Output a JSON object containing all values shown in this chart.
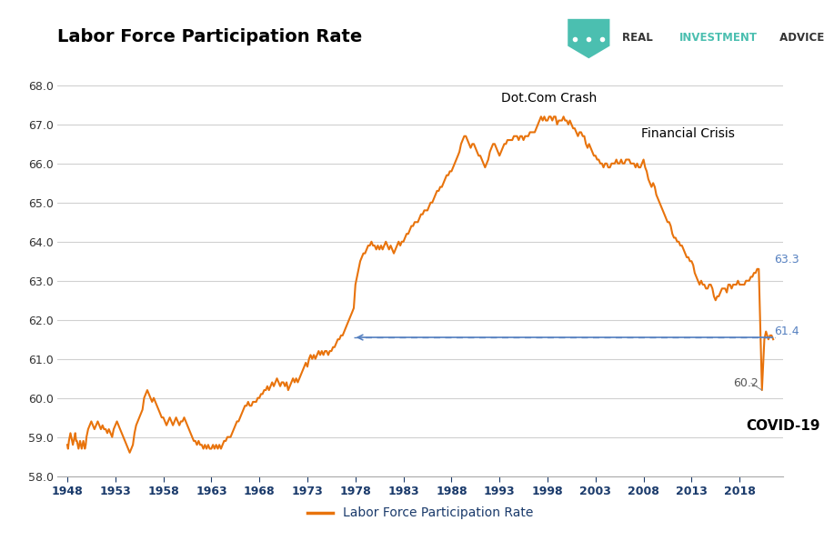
{
  "title": "Labor Force Participation Rate",
  "legend_label": "Labor Force Participation Rate",
  "line_color": "#E8730C",
  "background_color": "#ffffff",
  "grid_color": "#d0d0d0",
  "ylim": [
    58.0,
    68.8
  ],
  "yticks": [
    58.0,
    59.0,
    60.0,
    61.0,
    62.0,
    63.0,
    64.0,
    65.0,
    66.0,
    67.0,
    68.0
  ],
  "xticks": [
    1948,
    1953,
    1958,
    1963,
    1968,
    1973,
    1978,
    1983,
    1988,
    1993,
    1998,
    2003,
    2008,
    2013,
    2018
  ],
  "xlim": [
    1947,
    2022.5
  ],
  "dashed_line_y": 61.55,
  "dashed_line_x_start": 1977.8,
  "dashed_line_x_end": 2021.7,
  "series": [
    [
      1948.0,
      58.8
    ],
    [
      1948.08,
      58.7
    ],
    [
      1948.17,
      58.9
    ],
    [
      1948.25,
      59.0
    ],
    [
      1948.33,
      59.1
    ],
    [
      1948.42,
      59.0
    ],
    [
      1948.5,
      58.9
    ],
    [
      1948.58,
      58.8
    ],
    [
      1948.67,
      58.9
    ],
    [
      1948.75,
      59.0
    ],
    [
      1948.83,
      59.1
    ],
    [
      1948.92,
      58.9
    ],
    [
      1949.0,
      58.9
    ],
    [
      1949.08,
      58.8
    ],
    [
      1949.17,
      58.7
    ],
    [
      1949.25,
      58.8
    ],
    [
      1949.33,
      58.9
    ],
    [
      1949.42,
      58.8
    ],
    [
      1949.5,
      58.7
    ],
    [
      1949.58,
      58.8
    ],
    [
      1949.67,
      58.9
    ],
    [
      1949.75,
      58.8
    ],
    [
      1949.83,
      58.7
    ],
    [
      1949.92,
      58.8
    ],
    [
      1950.0,
      59.0
    ],
    [
      1950.17,
      59.2
    ],
    [
      1950.33,
      59.3
    ],
    [
      1950.5,
      59.4
    ],
    [
      1950.67,
      59.3
    ],
    [
      1950.83,
      59.2
    ],
    [
      1951.0,
      59.3
    ],
    [
      1951.17,
      59.4
    ],
    [
      1951.33,
      59.3
    ],
    [
      1951.5,
      59.2
    ],
    [
      1951.67,
      59.3
    ],
    [
      1951.83,
      59.2
    ],
    [
      1952.0,
      59.2
    ],
    [
      1952.17,
      59.1
    ],
    [
      1952.33,
      59.2
    ],
    [
      1952.5,
      59.1
    ],
    [
      1952.67,
      59.0
    ],
    [
      1952.83,
      59.2
    ],
    [
      1953.0,
      59.3
    ],
    [
      1953.17,
      59.4
    ],
    [
      1953.33,
      59.3
    ],
    [
      1953.5,
      59.2
    ],
    [
      1953.67,
      59.1
    ],
    [
      1953.83,
      59.0
    ],
    [
      1954.0,
      58.9
    ],
    [
      1954.17,
      58.8
    ],
    [
      1954.33,
      58.7
    ],
    [
      1954.5,
      58.6
    ],
    [
      1954.67,
      58.7
    ],
    [
      1954.83,
      58.8
    ],
    [
      1955.0,
      59.1
    ],
    [
      1955.17,
      59.3
    ],
    [
      1955.33,
      59.4
    ],
    [
      1955.5,
      59.5
    ],
    [
      1955.67,
      59.6
    ],
    [
      1955.83,
      59.7
    ],
    [
      1956.0,
      60.0
    ],
    [
      1956.17,
      60.1
    ],
    [
      1956.33,
      60.2
    ],
    [
      1956.5,
      60.1
    ],
    [
      1956.67,
      60.0
    ],
    [
      1956.83,
      59.9
    ],
    [
      1957.0,
      60.0
    ],
    [
      1957.17,
      59.9
    ],
    [
      1957.33,
      59.8
    ],
    [
      1957.5,
      59.7
    ],
    [
      1957.67,
      59.6
    ],
    [
      1957.83,
      59.5
    ],
    [
      1958.0,
      59.5
    ],
    [
      1958.17,
      59.4
    ],
    [
      1958.33,
      59.3
    ],
    [
      1958.5,
      59.4
    ],
    [
      1958.67,
      59.5
    ],
    [
      1958.83,
      59.4
    ],
    [
      1959.0,
      59.3
    ],
    [
      1959.17,
      59.4
    ],
    [
      1959.33,
      59.5
    ],
    [
      1959.5,
      59.4
    ],
    [
      1959.67,
      59.3
    ],
    [
      1959.83,
      59.4
    ],
    [
      1960.0,
      59.4
    ],
    [
      1960.17,
      59.5
    ],
    [
      1960.33,
      59.4
    ],
    [
      1960.5,
      59.3
    ],
    [
      1960.67,
      59.2
    ],
    [
      1960.83,
      59.1
    ],
    [
      1961.0,
      59.0
    ],
    [
      1961.17,
      58.9
    ],
    [
      1961.33,
      58.9
    ],
    [
      1961.5,
      58.8
    ],
    [
      1961.67,
      58.9
    ],
    [
      1961.83,
      58.8
    ],
    [
      1962.0,
      58.8
    ],
    [
      1962.17,
      58.7
    ],
    [
      1962.33,
      58.8
    ],
    [
      1962.5,
      58.7
    ],
    [
      1962.67,
      58.8
    ],
    [
      1962.83,
      58.7
    ],
    [
      1963.0,
      58.7
    ],
    [
      1963.17,
      58.8
    ],
    [
      1963.33,
      58.7
    ],
    [
      1963.5,
      58.8
    ],
    [
      1963.67,
      58.7
    ],
    [
      1963.83,
      58.8
    ],
    [
      1964.0,
      58.7
    ],
    [
      1964.17,
      58.8
    ],
    [
      1964.33,
      58.9
    ],
    [
      1964.5,
      58.9
    ],
    [
      1964.67,
      59.0
    ],
    [
      1964.83,
      59.0
    ],
    [
      1965.0,
      59.0
    ],
    [
      1965.17,
      59.1
    ],
    [
      1965.33,
      59.2
    ],
    [
      1965.5,
      59.3
    ],
    [
      1965.67,
      59.4
    ],
    [
      1965.83,
      59.4
    ],
    [
      1966.0,
      59.5
    ],
    [
      1966.17,
      59.6
    ],
    [
      1966.33,
      59.7
    ],
    [
      1966.5,
      59.8
    ],
    [
      1966.67,
      59.8
    ],
    [
      1966.83,
      59.9
    ],
    [
      1967.0,
      59.8
    ],
    [
      1967.17,
      59.8
    ],
    [
      1967.33,
      59.9
    ],
    [
      1967.5,
      59.9
    ],
    [
      1967.67,
      59.9
    ],
    [
      1967.83,
      60.0
    ],
    [
      1968.0,
      60.0
    ],
    [
      1968.17,
      60.1
    ],
    [
      1968.33,
      60.1
    ],
    [
      1968.5,
      60.2
    ],
    [
      1968.67,
      60.2
    ],
    [
      1968.83,
      60.3
    ],
    [
      1969.0,
      60.2
    ],
    [
      1969.17,
      60.3
    ],
    [
      1969.33,
      60.4
    ],
    [
      1969.5,
      60.3
    ],
    [
      1969.67,
      60.4
    ],
    [
      1969.83,
      60.5
    ],
    [
      1970.0,
      60.4
    ],
    [
      1970.17,
      60.3
    ],
    [
      1970.33,
      60.4
    ],
    [
      1970.5,
      60.4
    ],
    [
      1970.67,
      60.3
    ],
    [
      1970.83,
      60.4
    ],
    [
      1971.0,
      60.2
    ],
    [
      1971.17,
      60.3
    ],
    [
      1971.33,
      60.4
    ],
    [
      1971.5,
      60.5
    ],
    [
      1971.67,
      60.4
    ],
    [
      1971.83,
      60.5
    ],
    [
      1972.0,
      60.4
    ],
    [
      1972.17,
      60.5
    ],
    [
      1972.33,
      60.6
    ],
    [
      1972.5,
      60.7
    ],
    [
      1972.67,
      60.8
    ],
    [
      1972.83,
      60.9
    ],
    [
      1973.0,
      60.8
    ],
    [
      1973.17,
      61.0
    ],
    [
      1973.33,
      61.1
    ],
    [
      1973.5,
      61.0
    ],
    [
      1973.67,
      61.1
    ],
    [
      1973.83,
      61.0
    ],
    [
      1974.0,
      61.1
    ],
    [
      1974.17,
      61.2
    ],
    [
      1974.33,
      61.1
    ],
    [
      1974.5,
      61.2
    ],
    [
      1974.67,
      61.1
    ],
    [
      1974.83,
      61.2
    ],
    [
      1975.0,
      61.2
    ],
    [
      1975.17,
      61.1
    ],
    [
      1975.33,
      61.2
    ],
    [
      1975.5,
      61.2
    ],
    [
      1975.67,
      61.3
    ],
    [
      1975.83,
      61.3
    ],
    [
      1976.0,
      61.4
    ],
    [
      1976.17,
      61.5
    ],
    [
      1976.33,
      61.5
    ],
    [
      1976.5,
      61.6
    ],
    [
      1976.67,
      61.6
    ],
    [
      1976.83,
      61.7
    ],
    [
      1977.0,
      61.8
    ],
    [
      1977.17,
      61.9
    ],
    [
      1977.33,
      62.0
    ],
    [
      1977.5,
      62.1
    ],
    [
      1977.67,
      62.2
    ],
    [
      1977.83,
      62.3
    ],
    [
      1978.0,
      62.9
    ],
    [
      1978.17,
      63.1
    ],
    [
      1978.33,
      63.3
    ],
    [
      1978.5,
      63.5
    ],
    [
      1978.67,
      63.6
    ],
    [
      1978.83,
      63.7
    ],
    [
      1979.0,
      63.7
    ],
    [
      1979.17,
      63.8
    ],
    [
      1979.33,
      63.9
    ],
    [
      1979.5,
      63.9
    ],
    [
      1979.67,
      64.0
    ],
    [
      1979.83,
      63.9
    ],
    [
      1980.0,
      63.9
    ],
    [
      1980.17,
      63.8
    ],
    [
      1980.33,
      63.9
    ],
    [
      1980.5,
      63.8
    ],
    [
      1980.67,
      63.9
    ],
    [
      1980.83,
      63.8
    ],
    [
      1981.0,
      63.9
    ],
    [
      1981.17,
      64.0
    ],
    [
      1981.33,
      63.9
    ],
    [
      1981.5,
      63.8
    ],
    [
      1981.67,
      63.9
    ],
    [
      1981.83,
      63.8
    ],
    [
      1982.0,
      63.7
    ],
    [
      1982.17,
      63.8
    ],
    [
      1982.33,
      63.9
    ],
    [
      1982.5,
      64.0
    ],
    [
      1982.67,
      63.9
    ],
    [
      1982.83,
      64.0
    ],
    [
      1983.0,
      64.0
    ],
    [
      1983.17,
      64.1
    ],
    [
      1983.33,
      64.2
    ],
    [
      1983.5,
      64.2
    ],
    [
      1983.67,
      64.3
    ],
    [
      1983.83,
      64.4
    ],
    [
      1984.0,
      64.4
    ],
    [
      1984.17,
      64.5
    ],
    [
      1984.33,
      64.5
    ],
    [
      1984.5,
      64.5
    ],
    [
      1984.67,
      64.6
    ],
    [
      1984.83,
      64.7
    ],
    [
      1985.0,
      64.7
    ],
    [
      1985.17,
      64.8
    ],
    [
      1985.33,
      64.8
    ],
    [
      1985.5,
      64.8
    ],
    [
      1985.67,
      64.9
    ],
    [
      1985.83,
      65.0
    ],
    [
      1986.0,
      65.0
    ],
    [
      1986.17,
      65.1
    ],
    [
      1986.33,
      65.2
    ],
    [
      1986.5,
      65.3
    ],
    [
      1986.67,
      65.3
    ],
    [
      1986.83,
      65.4
    ],
    [
      1987.0,
      65.4
    ],
    [
      1987.17,
      65.5
    ],
    [
      1987.33,
      65.6
    ],
    [
      1987.5,
      65.7
    ],
    [
      1987.67,
      65.7
    ],
    [
      1987.83,
      65.8
    ],
    [
      1988.0,
      65.8
    ],
    [
      1988.17,
      65.9
    ],
    [
      1988.33,
      66.0
    ],
    [
      1988.5,
      66.1
    ],
    [
      1988.67,
      66.2
    ],
    [
      1988.83,
      66.3
    ],
    [
      1989.0,
      66.5
    ],
    [
      1989.17,
      66.6
    ],
    [
      1989.33,
      66.7
    ],
    [
      1989.5,
      66.7
    ],
    [
      1989.67,
      66.6
    ],
    [
      1989.83,
      66.5
    ],
    [
      1990.0,
      66.4
    ],
    [
      1990.17,
      66.5
    ],
    [
      1990.33,
      66.5
    ],
    [
      1990.5,
      66.4
    ],
    [
      1990.67,
      66.3
    ],
    [
      1990.83,
      66.2
    ],
    [
      1991.0,
      66.2
    ],
    [
      1991.17,
      66.1
    ],
    [
      1991.33,
      66.0
    ],
    [
      1991.5,
      65.9
    ],
    [
      1991.67,
      66.0
    ],
    [
      1991.83,
      66.1
    ],
    [
      1992.0,
      66.3
    ],
    [
      1992.17,
      66.4
    ],
    [
      1992.33,
      66.5
    ],
    [
      1992.5,
      66.5
    ],
    [
      1992.67,
      66.4
    ],
    [
      1992.83,
      66.3
    ],
    [
      1993.0,
      66.2
    ],
    [
      1993.17,
      66.3
    ],
    [
      1993.33,
      66.4
    ],
    [
      1993.5,
      66.5
    ],
    [
      1993.67,
      66.5
    ],
    [
      1993.83,
      66.6
    ],
    [
      1994.0,
      66.6
    ],
    [
      1994.17,
      66.6
    ],
    [
      1994.33,
      66.6
    ],
    [
      1994.5,
      66.7
    ],
    [
      1994.67,
      66.7
    ],
    [
      1994.83,
      66.7
    ],
    [
      1995.0,
      66.6
    ],
    [
      1995.17,
      66.7
    ],
    [
      1995.33,
      66.7
    ],
    [
      1995.5,
      66.6
    ],
    [
      1995.67,
      66.7
    ],
    [
      1995.83,
      66.7
    ],
    [
      1996.0,
      66.7
    ],
    [
      1996.17,
      66.8
    ],
    [
      1996.33,
      66.8
    ],
    [
      1996.5,
      66.8
    ],
    [
      1996.67,
      66.8
    ],
    [
      1996.83,
      66.9
    ],
    [
      1997.0,
      67.0
    ],
    [
      1997.17,
      67.1
    ],
    [
      1997.33,
      67.2
    ],
    [
      1997.5,
      67.1
    ],
    [
      1997.67,
      67.2
    ],
    [
      1997.83,
      67.1
    ],
    [
      1998.0,
      67.1
    ],
    [
      1998.17,
      67.2
    ],
    [
      1998.33,
      67.2
    ],
    [
      1998.5,
      67.1
    ],
    [
      1998.67,
      67.2
    ],
    [
      1998.83,
      67.2
    ],
    [
      1999.0,
      67.0
    ],
    [
      1999.17,
      67.1
    ],
    [
      1999.33,
      67.1
    ],
    [
      1999.5,
      67.1
    ],
    [
      1999.67,
      67.2
    ],
    [
      1999.83,
      67.1
    ],
    [
      2000.0,
      67.1
    ],
    [
      2000.17,
      67.0
    ],
    [
      2000.33,
      67.1
    ],
    [
      2000.5,
      67.0
    ],
    [
      2000.67,
      66.9
    ],
    [
      2000.83,
      66.9
    ],
    [
      2001.0,
      66.8
    ],
    [
      2001.17,
      66.7
    ],
    [
      2001.33,
      66.8
    ],
    [
      2001.5,
      66.8
    ],
    [
      2001.67,
      66.7
    ],
    [
      2001.83,
      66.7
    ],
    [
      2002.0,
      66.5
    ],
    [
      2002.17,
      66.4
    ],
    [
      2002.33,
      66.5
    ],
    [
      2002.5,
      66.4
    ],
    [
      2002.67,
      66.3
    ],
    [
      2002.83,
      66.2
    ],
    [
      2003.0,
      66.2
    ],
    [
      2003.17,
      66.1
    ],
    [
      2003.33,
      66.1
    ],
    [
      2003.5,
      66.0
    ],
    [
      2003.67,
      66.0
    ],
    [
      2003.83,
      65.9
    ],
    [
      2004.0,
      66.0
    ],
    [
      2004.17,
      66.0
    ],
    [
      2004.33,
      65.9
    ],
    [
      2004.5,
      65.9
    ],
    [
      2004.67,
      66.0
    ],
    [
      2004.83,
      66.0
    ],
    [
      2005.0,
      66.0
    ],
    [
      2005.17,
      66.1
    ],
    [
      2005.33,
      66.0
    ],
    [
      2005.5,
      66.0
    ],
    [
      2005.67,
      66.1
    ],
    [
      2005.83,
      66.0
    ],
    [
      2006.0,
      66.0
    ],
    [
      2006.17,
      66.1
    ],
    [
      2006.33,
      66.1
    ],
    [
      2006.5,
      66.1
    ],
    [
      2006.67,
      66.0
    ],
    [
      2006.83,
      66.0
    ],
    [
      2007.0,
      66.0
    ],
    [
      2007.17,
      65.9
    ],
    [
      2007.33,
      66.0
    ],
    [
      2007.5,
      65.9
    ],
    [
      2007.67,
      65.9
    ],
    [
      2007.83,
      66.0
    ],
    [
      2008.0,
      66.1
    ],
    [
      2008.17,
      65.9
    ],
    [
      2008.33,
      65.8
    ],
    [
      2008.5,
      65.6
    ],
    [
      2008.67,
      65.5
    ],
    [
      2008.83,
      65.4
    ],
    [
      2009.0,
      65.5
    ],
    [
      2009.17,
      65.4
    ],
    [
      2009.33,
      65.2
    ],
    [
      2009.5,
      65.1
    ],
    [
      2009.67,
      65.0
    ],
    [
      2009.83,
      64.9
    ],
    [
      2010.0,
      64.8
    ],
    [
      2010.17,
      64.7
    ],
    [
      2010.33,
      64.6
    ],
    [
      2010.5,
      64.5
    ],
    [
      2010.67,
      64.5
    ],
    [
      2010.83,
      64.4
    ],
    [
      2011.0,
      64.2
    ],
    [
      2011.17,
      64.1
    ],
    [
      2011.33,
      64.1
    ],
    [
      2011.5,
      64.0
    ],
    [
      2011.67,
      64.0
    ],
    [
      2011.83,
      63.9
    ],
    [
      2012.0,
      63.9
    ],
    [
      2012.17,
      63.8
    ],
    [
      2012.33,
      63.7
    ],
    [
      2012.5,
      63.6
    ],
    [
      2012.67,
      63.6
    ],
    [
      2012.83,
      63.5
    ],
    [
      2013.0,
      63.5
    ],
    [
      2013.17,
      63.4
    ],
    [
      2013.33,
      63.2
    ],
    [
      2013.5,
      63.1
    ],
    [
      2013.67,
      63.0
    ],
    [
      2013.83,
      62.9
    ],
    [
      2014.0,
      63.0
    ],
    [
      2014.17,
      62.9
    ],
    [
      2014.33,
      62.9
    ],
    [
      2014.5,
      62.8
    ],
    [
      2014.67,
      62.8
    ],
    [
      2014.83,
      62.9
    ],
    [
      2015.0,
      62.9
    ],
    [
      2015.17,
      62.8
    ],
    [
      2015.33,
      62.6
    ],
    [
      2015.5,
      62.5
    ],
    [
      2015.67,
      62.6
    ],
    [
      2015.83,
      62.6
    ],
    [
      2016.0,
      62.7
    ],
    [
      2016.17,
      62.8
    ],
    [
      2016.33,
      62.8
    ],
    [
      2016.5,
      62.8
    ],
    [
      2016.67,
      62.7
    ],
    [
      2016.83,
      62.9
    ],
    [
      2017.0,
      62.9
    ],
    [
      2017.17,
      62.8
    ],
    [
      2017.33,
      62.9
    ],
    [
      2017.5,
      62.9
    ],
    [
      2017.67,
      62.9
    ],
    [
      2017.83,
      63.0
    ],
    [
      2018.0,
      62.9
    ],
    [
      2018.17,
      62.9
    ],
    [
      2018.33,
      62.9
    ],
    [
      2018.5,
      62.9
    ],
    [
      2018.67,
      63.0
    ],
    [
      2018.83,
      63.0
    ],
    [
      2019.0,
      63.0
    ],
    [
      2019.17,
      63.1
    ],
    [
      2019.33,
      63.1
    ],
    [
      2019.5,
      63.2
    ],
    [
      2019.67,
      63.2
    ],
    [
      2019.83,
      63.3
    ],
    [
      2020.0,
      63.3
    ],
    [
      2020.33,
      60.2
    ],
    [
      2020.58,
      61.5
    ],
    [
      2020.75,
      61.7
    ],
    [
      2021.0,
      61.5
    ],
    [
      2021.17,
      61.6
    ],
    [
      2021.33,
      61.6
    ],
    [
      2021.5,
      61.5
    ]
  ]
}
